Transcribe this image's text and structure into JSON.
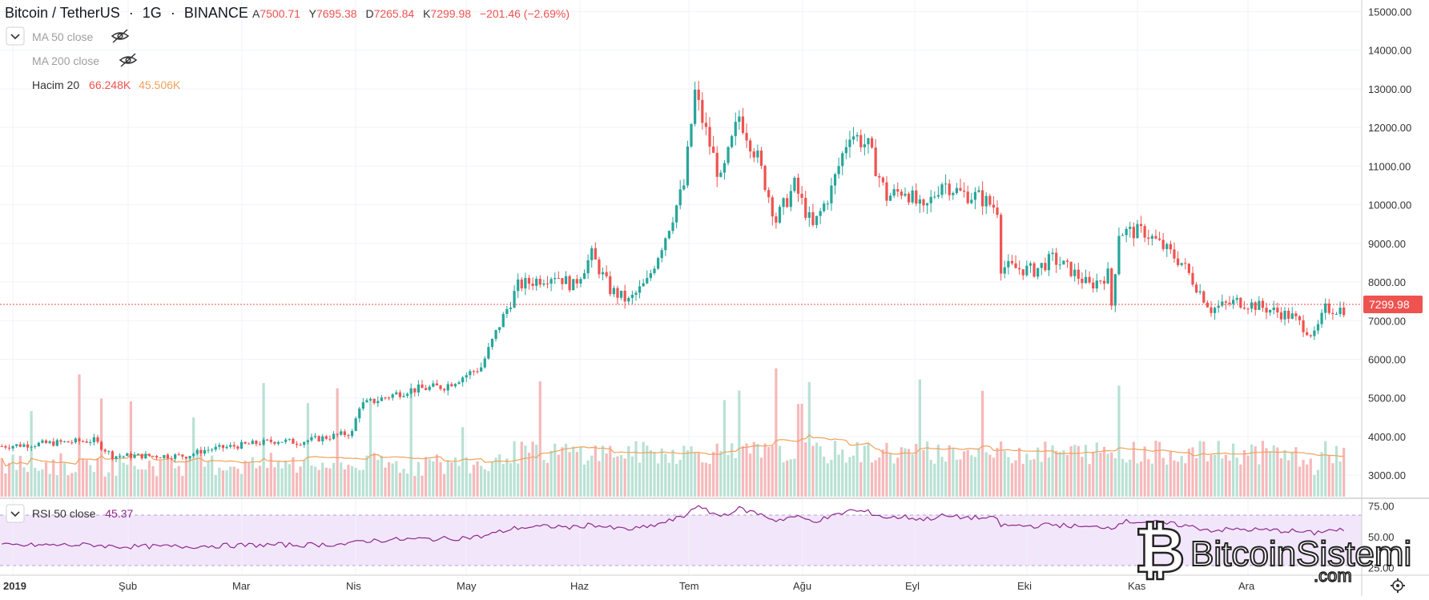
{
  "header": {
    "symbol": "Bitcoin / TetherUS",
    "interval": "1G",
    "exchange": "BINANCE",
    "ohlc": {
      "open_label": "A",
      "open": "7500.71",
      "high_label": "Y",
      "high": "7695.38",
      "low_label": "D",
      "low": "7265.84",
      "close_label": "K",
      "close": "7299.98",
      "change": "−201.46 (−2.69%)"
    }
  },
  "indicators": {
    "ma50": "MA 50 close",
    "ma200": "MA 200 close",
    "volume_label": "Hacim 20",
    "volume_value": "66.248K",
    "volume_ma": "45.506K",
    "rsi_label": "RSI 50 close",
    "rsi_value": "45.37"
  },
  "price_label": "7299.98",
  "watermark": {
    "text": "BitcoinSistemi",
    "suffix": ".com"
  },
  "colors": {
    "up": "#26a69a",
    "down": "#ef5350",
    "volume_up": "#b9e1d4",
    "volume_down": "#f6b9ba",
    "volume_ma": "#f0a15a",
    "rsi_line": "#8e2a8e",
    "rsi_band": "#f2e6fb"
  },
  "chart_data": {
    "type": "candlestick",
    "price_axis": {
      "ticks": [
        "15000.00",
        "14000.00",
        "13000.00",
        "12000.00",
        "11000.00",
        "10000.00",
        "9000.00",
        "8000.00",
        "7000.00",
        "6000.00",
        "5000.00",
        "4000.00",
        "3000.00"
      ],
      "range": [
        2900,
        15300
      ]
    },
    "rsi_axis": {
      "ticks": [
        "75.00",
        "50.00",
        "25.00"
      ],
      "range": [
        20,
        80
      ]
    },
    "x_ticks": [
      "2019",
      "Şub",
      "Mar",
      "Nis",
      "May",
      "Haz",
      "Tem",
      "Ağu",
      "Eyl",
      "Eki",
      "Kas",
      "Ara"
    ],
    "price_key_points": [
      [
        0,
        3750
      ],
      [
        25,
        3900
      ],
      [
        30,
        3500
      ],
      [
        50,
        3500
      ],
      [
        55,
        3650
      ],
      [
        75,
        3900
      ],
      [
        80,
        3850
      ],
      [
        95,
        4100
      ],
      [
        97,
        4800
      ],
      [
        110,
        5200
      ],
      [
        120,
        5300
      ],
      [
        130,
        5800
      ],
      [
        135,
        6900
      ],
      [
        140,
        7900
      ],
      [
        150,
        8200
      ],
      [
        155,
        7900
      ],
      [
        160,
        8700
      ],
      [
        165,
        7800
      ],
      [
        170,
        7500
      ],
      [
        175,
        8000
      ],
      [
        180,
        9200
      ],
      [
        185,
        10500
      ],
      [
        188,
        12900
      ],
      [
        190,
        12200
      ],
      [
        195,
        10600
      ],
      [
        200,
        12300
      ],
      [
        205,
        11200
      ],
      [
        210,
        9600
      ],
      [
        215,
        10500
      ],
      [
        220,
        9400
      ],
      [
        225,
        10400
      ],
      [
        230,
        11900
      ],
      [
        235,
        11500
      ],
      [
        240,
        10200
      ],
      [
        245,
        10400
      ],
      [
        250,
        9800
      ],
      [
        255,
        10600
      ],
      [
        260,
        10300
      ],
      [
        265,
        10200
      ],
      [
        270,
        9900
      ],
      [
        271,
        8400
      ],
      [
        280,
        8300
      ],
      [
        285,
        8600
      ],
      [
        290,
        8300
      ],
      [
        295,
        7900
      ],
      [
        300,
        8200
      ],
      [
        301,
        7400
      ],
      [
        303,
        9300
      ],
      [
        310,
        9300
      ],
      [
        315,
        8900
      ],
      [
        320,
        8500
      ],
      [
        328,
        7300
      ],
      [
        335,
        7500
      ],
      [
        340,
        7400
      ],
      [
        350,
        7100
      ],
      [
        356,
        6600
      ],
      [
        359,
        7300
      ],
      [
        364,
        7300
      ]
    ]
  }
}
